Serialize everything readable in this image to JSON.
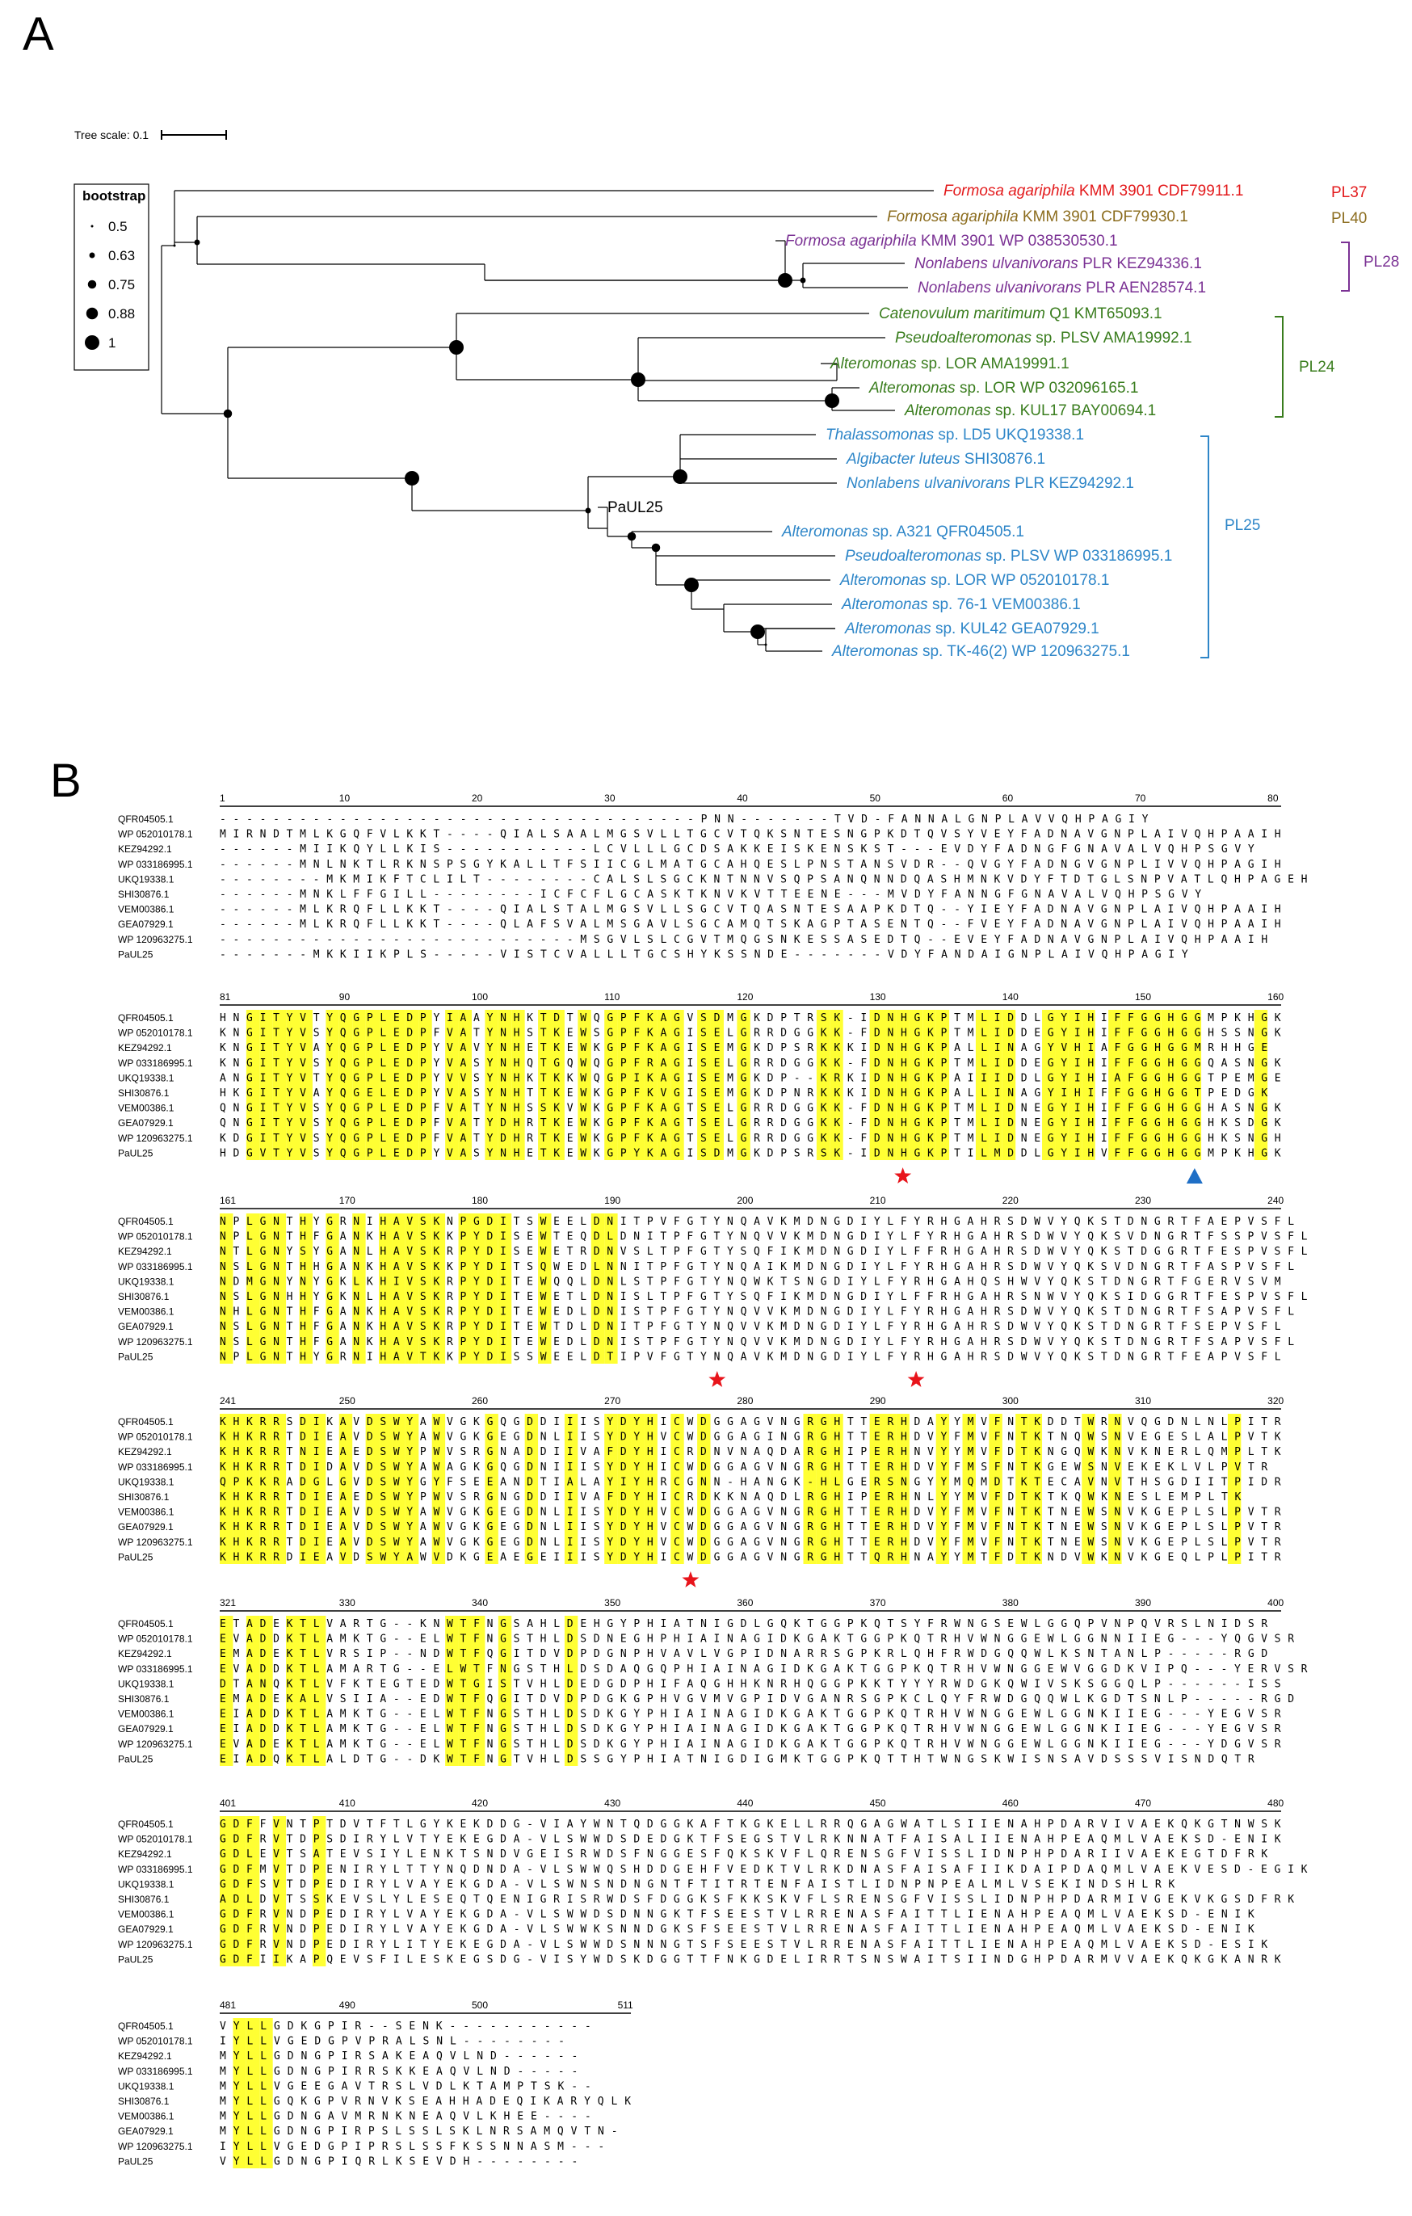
{
  "panels": {
    "a": "A",
    "b": "B"
  },
  "tree": {
    "scale_label": "Tree scale: 0.1",
    "legend_title": "bootstrap",
    "legend_items": [
      {
        "label": "0.5",
        "value": 0.5
      },
      {
        "label": "0.63",
        "value": 0.63
      },
      {
        "label": "0.75",
        "value": 0.75
      },
      {
        "label": "0.88",
        "value": 0.88
      },
      {
        "label": "1",
        "value": 1
      }
    ],
    "leaves": [
      {
        "species": "Formosa agariphila",
        "rest": " KMM 3901 CDF79911.1",
        "color": "#e31a1c"
      },
      {
        "species": "Formosa agariphila",
        "rest": " KMM 3901 CDF79930.1",
        "color": "#8c6d1f"
      },
      {
        "species": "Formosa agariphila",
        "rest": " KMM 3901 WP 038530530.1",
        "color": "#7b3294"
      },
      {
        "species": "Nonlabens ulvanivorans",
        "rest": " PLR KEZ94336.1",
        "color": "#7b3294"
      },
      {
        "species": "Nonlabens ulvanivorans",
        "rest": " PLR AEN28574.1",
        "color": "#7b3294"
      },
      {
        "species": "Catenovulum maritimum",
        "rest": " Q1 KMT65093.1",
        "color": "#3a7d1e"
      },
      {
        "species": "Pseudoalteromonas",
        "rest": " sp. PLSV AMA19992.1",
        "color": "#3a7d1e"
      },
      {
        "species": "Alteromonas",
        "rest": " sp. LOR AMA19991.1",
        "color": "#3a7d1e"
      },
      {
        "species": "Alteromonas",
        "rest": " sp. LOR WP 032096165.1",
        "color": "#3a7d1e"
      },
      {
        "species": "Alteromonas",
        "rest": " sp. KUL17 BAY00694.1",
        "color": "#3a7d1e"
      },
      {
        "species": "Thalassomonas",
        "rest": " sp. LD5 UKQ19338.1",
        "color": "#2e86c8"
      },
      {
        "species": "Algibacter luteus",
        "rest": " SHI30876.1",
        "color": "#2e86c8"
      },
      {
        "species": "Nonlabens ulvanivorans",
        "rest": " PLR KEZ94292.1",
        "color": "#2e86c8"
      },
      {
        "species": "",
        "rest": "PaUL25",
        "color": "#000000"
      },
      {
        "species": "Alteromonas",
        "rest": " sp. A321 QFR04505.1",
        "color": "#2e86c8"
      },
      {
        "species": "Pseudoalteromonas",
        "rest": " sp. PLSV WP 033186995.1",
        "color": "#2e86c8"
      },
      {
        "species": "Alteromonas",
        "rest": " sp. LOR WP 052010178.1",
        "color": "#2e86c8"
      },
      {
        "species": "Alteromonas",
        "rest": " sp. 76-1 VEM00386.1",
        "color": "#2e86c8"
      },
      {
        "species": "Alteromonas",
        "rest": " sp. KUL42 GEA07929.1",
        "color": "#2e86c8"
      },
      {
        "species": "Alteromonas",
        "rest": " sp. TK-46(2) WP 120963275.1",
        "color": "#2e86c8"
      }
    ],
    "families": [
      {
        "label": "PL37",
        "color": "#e31a1c"
      },
      {
        "label": "PL40",
        "color": "#8c6d1f"
      },
      {
        "label": "PL28",
        "color": "#7b3294"
      },
      {
        "label": "PL24",
        "color": "#3a7d1e"
      },
      {
        "label": "PL25",
        "color": "#2e86c8"
      }
    ]
  },
  "alignment": {
    "names": [
      "QFR04505.1",
      "WP 052010178.1",
      "KEZ94292.1",
      "WP 033186995.1",
      "UKQ19338.1",
      "SHI30876.1",
      "VEM00386.1",
      "GEA07929.1",
      "WP 120963275.1",
      "PaUL25"
    ],
    "highlight_color": "#ffff33",
    "blocks": [
      {
        "ticks": [
          "1",
          "10",
          "20",
          "30",
          "40",
          "50",
          "60",
          "70",
          "80"
        ],
        "rows": [
          "------------------------------------PNN-------TVD-FANNALGNPLAVVQHPAGIY",
          "MIRNDTMLKGQFVLKKT----QIALSAALMGSVLLTGCVTQKSNTESNGPKDTQVSYVEYFADNAVGNPLAIVQHPAAIH",
          "------MIIKQYLLKIS-----------LCVLLLGCDSAKKEISKENSKST---EVDYFADNGFGNAVALVQHPSGVY",
          "------MNLNKTLRKNSPSGYKALLTFSIICGLMATGCAHQESLPNSTANSVDR--QVGYFADNGVGNPLIVVQHPAGIH",
          "--------MKMIKFTCLILT--------CALSLSGCKNTNNVSQPSANQNNDQASHMNKVDYFTDTGLSNPVATLQHPAGEH",
          "------MNKLFFGILL--------ICFCFLGCASKTKNVKVTTEENE---MVDYFANNGFGNAVALVQHPSGVY",
          "------MLKRQFLLKKT----QIALSTALMGSVLLSGCVTQASNTESAAPKDTQ--YIEYFADNAVGNPLAIVQHPAAIH",
          "------MLKRQFLLKKT----QLAFSVALMSGAVLSGCAMQTSKAGPTASENTQ--FVEYFADNAVGNPLAIVQHPAAIH",
          "---------------------------MSGVLSLCGVTMQGSNKESSASEDTQ--EVEYFADNAVGNPLAIVQHPAAIH",
          "-------MKKIIKPLS-----VISTCVALLLTGCSHYKSSNDE-------VDYFANDAIGNPLAIVQHPAGIY"
        ],
        "marks": []
      },
      {
        "ticks": [
          "81",
          "90",
          "100",
          "110",
          "120",
          "130",
          "140",
          "150",
          "160"
        ],
        "rows": [
          "HNGITYVTYQGPLEDPYIAAYNHKTDTWQGPFKAGVSDMGKDPTRSK-IDNHGKPTMLIDDLGYIHIFFGGHGGMPKHGK",
          "KNGITYVSYQGPLEDPFVATYNHSTKEWSGPFKAGISELGRRDGGKK-FDNHGKPTMLIDDEGYIHIFFGGHGGHSSNGK",
          "KNGITYVAYQGPLEDPYVAVYNHETKEWKGPFKAGISEMGKDPSRKKKIDNHGKPALLINAGYVHIAFGGHGGMRHHGE",
          "KNGITYVSYQGPLEDPYVASYNHQTGQWQGPFRAGISELGRRDGGKK-FDNHGKPTMLIDDEGYIHIFFGGHGGQASNGK",
          "ANGITYVTYQGPLEDPYVVSYNHKTKKWQGPIKAGISEMGKDP--KRKIDNHGKPAIIIDDLGYIHIAFGGHGGTPEMGE",
          "HKGITYVAYQGELEDPYVASYNHTTKEWKGPFKVGISEMGKDPNRKKKIDNHGKPALLINAGYIHIFFGGHGGTPEDGK",
          "QNGITYVSYQGPLEDPFVATYNHSSKVWKGPFKAGTSELGRRDGGKK-FDNHGKPTMLIDNEGYIHIFFGGHGGHASNGK",
          "QNGITYVSYQGPLEDPFVATYDHRTKEWKGPFKAGTSELGRRDGGKK-FDNHGKPTMLIDNEGYIHIFFGGHGGHKSDGK",
          "KDGITYVSYQGPLEDPFVATYDHRTKEWKGPFKAGTSELGRRDGGKK-FDNHGKPTMLIDNEGYIHIFFGGHGGHKSNGH",
          "HDGVTYVSYQGPLEDPYVASYNHETKEWKGPYKAGISDMGKDPSRSK-IDNHGKPTILMDDLGYIHVFFGGHGGMPKHGK"
        ],
        "marks": [
          {
            "col": 51,
            "type": "star"
          },
          {
            "col": 73,
            "type": "triangle"
          }
        ]
      },
      {
        "ticks": [
          "161",
          "170",
          "180",
          "190",
          "200",
          "210",
          "220",
          "230",
          "240"
        ],
        "rows": [
          "NPLGNTHYGRNIHAVSKNPGDITSWEELDNITPVFGTYNQAVKMDNGDIYLFYRHGAHRSDWVYQKSTDNGRTFAEPVSFL",
          "NPLGNTHFGANKHAVSKKPYDISEWTEQDLDNITPFGTYNQVVKMDNGDIYLFYRHGAHRSDWVYQKSVDNGRTFSSPVSFL",
          "NTLGNYSYGANLHAVSKRPYDISEWETRDNVSLTPFGTYSQFIKMDNGDIYLFFRHGAHRSDWVYQKSTDGGRTFESPVSFL",
          "NSLGNTHHGANKHAVSKKPYDITSQWEDLNNITPFGTYNQAIKMDNGDIYLFYRHGAHRSDWVYQKSVDNGRTFASPVSFL",
          "NDMGNYNYGKLKHIVSKRPYDITEWQQLDNLSTPFGTYNQWKTSNGDIYLFYRHGAHQSHWVYQKSTDNGRTFGERVSVM",
          "NSLGNHHYGKNLHAVSKRPYDITEWETLDNISLTPFGTYSQFIKMDNGDIYLFFRHGAHRSNWVYQKSIDGGRTFESPVSFL",
          "NHLGNTHFGANKHAVSKRPYDITEWEDLDNISTPFGTYNQVVKMDNGDIYLFYRHGAHRSDWVYQKSTDNGRTFSAPVSFL",
          "NSLGNTHFGANKHAVSKRPYDITEWTDLDNITPFGTYNQVVKMDNGDIYLFYRHGAHRSDWVYQKSTDNGRTFSEPVSFL",
          "NSLGNTHFGANKHAVSKRPYDITEWEDLDNISTPFGTYNQVVKMDNGDIYLFYRHGAHRSDWVYQKSTDNGRTFSAPVSFL",
          "NPLGNTHYGRNIHAVTKKPYDISSWEELDTIPVFGTYNQAVKMDNGDIYLFYRHGAHRSDWVYQKSTDNGRTFEAPVSFL"
        ],
        "marks": [
          {
            "col": 37,
            "type": "star"
          },
          {
            "col": 52,
            "type": "star"
          }
        ]
      },
      {
        "ticks": [
          "241",
          "250",
          "260",
          "270",
          "280",
          "290",
          "300",
          "310",
          "320"
        ],
        "rows": [
          "KHKRRSDIKAVDSWYAWVGKGQGDDIIISYDYHICWDGGAGVNGRGHTTERHDAYYMVFNTKDDTWRNVQGDNLNLPITR",
          "KHKRRTDIEAVDSWYAWVGKGEGDNLIISYDYHVCWDGGAGINGRGHTTERHDVYFMVFNTKTNQWSNVEGESLALPVTK",
          "KHKRRTNIEAEDSWYPWVSRGNADDIIVAFDYHICRDNVNAQDARGHIPERHNVYYMVFDTKNGQWKNVKNERLQMPLTK",
          "KHKRRTDIDAVDSWYAWAGKGQGDNIIISYDYHICWDGGAGVNGRGHTTERHDVYFMSFNTKGEWSNVEKEKLVLPVTR",
          "QPKKRADGLGVDSWYGYFSEEANDTIALAYIYHRCGNN-HANGK-HLGERSNGYYMQMDTKTECAVNVTHSGDIITPIDR",
          "KHKRRTDIEAEDSWYPWVSRGNGDDIIVAFDYHICRDKKNAQDLRGHIPERHNLYYMVFDTKTKQWKNESLEMPLTK",
          "KHKRRTDIEAVDSWYAWVGKGEGDNLIISYDYHVCWDGGAGVNGRGHTTERHDVYFMVFNTKTNEWSNVKGEPLSLPVTR",
          "KHKRRTDIEAVDSWYAWVGKGEGDNLIISYDYHVCWDGGAGVNGRGHTTERHDVYFMVFNTKTNEWSNVKGEPLSLPVTR",
          "KHKRRTDIEAVDSWYAWVGKGEGDNLIISYDYHVCWDGGAGVNGRGHTTERHDVYFMVFNTKTNEWSNVKGEPLSLPVTR",
          "KHKRRDIEAVDSWYAWVDKGEAEGEIIISYDYHICWDGGAGVNGRGHTTQRHNAYYMTFDTKNDVWKNVKGEQLPLPITR"
        ],
        "marks": [
          {
            "col": 35,
            "type": "star"
          }
        ]
      },
      {
        "ticks": [
          "321",
          "330",
          "340",
          "350",
          "360",
          "370",
          "380",
          "390",
          "400"
        ],
        "rows": [
          "ETADEKTLVARTG--KNWTFNGSAHLDEHGYPHIATNIGDLGQKTGGPKQTSYFRWNGSEWLGGQPVNPQVRSLNIDSR",
          "EVADDKTLAMKTG--ELWTFNGSTHLDSDNEGHPHIAINAGIDKGAKTGGPKQTRHVWNGGEWLGGNNIIEG---YQGVSR",
          "EMADEKTLVRSIP--NDWTFQGITDVDPDGNPHVAVLVGPIDNARRSGPKRLQHFRWDGQQWLKSNTANLP-----RGD",
          "EVADDKTLAMARTG--ELWTFNGSTHLDSDAQGQPHIAINAGIDKGAKTGGPKQTRHVWNGGEWVGGDKVIPQ---YERVSR",
          "DTANQKTLVFKTEGTEDWTGISTVHLDEDGDPHIFAQGHHKNRHQGGPKKTYYYRWDGKQWIVSKSGGQLP------ISS",
          "EMADEKALVSIIA--EDWTFQGITDVDPDGKGPHVGVMVGPIDVGANRSGPKCLQYFRWDGQQWLKGDTSNLP-----RGD",
          "EIADDKTLAMKTG--ELWTFNGSTHLDSDKGYPHIAINAGIDKGAKTGGPKQTRHVWNGGEWLGGNKIIEG---YEGVSR",
          "EIADDKTLAMKTG--ELWTFNGSTHLDSDKGYPHIAINAGIDKGAKTGGPKQTRHVWNGGEWLGGNKIIEG---YEGVSR",
          "EVADEKTLAMKTG--ELWTFNGSTHLDSDKGYPHIAINAGIDKGAKTGGPKQTRHVWNGGEWLGGNKIIEG---YDGVSR",
          "EIADQKTLALDTG--DKWTFNGTVHLDSSGYPHIATNIGDIGMKTGGPKQTTHTWNGSKWISNSAVDSSSVISNDQTR"
        ],
        "marks": []
      },
      {
        "ticks": [
          "401",
          "410",
          "420",
          "430",
          "440",
          "450",
          "460",
          "470",
          "480"
        ],
        "rows": [
          "GDFFVNTPTDVTFTLGYKEKDDG-VIAYWNTQDGGKAFTKGKELLRRQGAGWATLSIIENAHPDARVIVAEKQKGTNWSK",
          "GDFRVTDPSDIRYLVTYEKEGDA-VLSWWDSDEDGKTFSEGSTVLRKNNATFAISALIIENAHPEAQMLVAEKSD-ENIK",
          "GDLEVTSATEVSIYLENKTSNDVGEISRWDSFNGGESFQKSKVFLQRENSGFVISSLIDNPHPDARIIVAEKEGTDFRK",
          "GDFMVTDPENIRYLTTYNQDNDA-VLSWWQSHDDGEHFVEDKTVLRKDNASFAISAFIIKDAIPDAQMLVAEKVESD-EGIK",
          "GDFSVTDPEDIRYLVAYEKGDA-VLSWNSNDNGNTFTITRTENFAISTLIDNPNPEALMLVSEKINDSHLRK",
          "ADLDVTSSKEVSLYLESEQTQENIGRISRWDSFDGGKSFKKSKVFLSRENSGFVISSLIDNPHPDARMIVGEKVKGSDFRK",
          "GDFRVNDPEDIRYLVAYEKGDA-VLSWWDSDNNGKTFSEESTVLRRENASFAITTLIENAHPEAQMLVAEKSD-ENIK",
          "GDFRVNDPEDIRYLVAYEKGDA-VLSWWKSNNDGKSFSEESTVLRRENASFAITTLIENAHPEAQMLVAEKSD-ENIK",
          "GDFRVNDPEDIRYLITYEKEGDA-VLSWWDSNNNGTSFSEESTVLRRENASFAITTLIENAHPEAQMLVAEKSD-ESIK",
          "GDFIIKAPQEVSFILESKEGSDG-VISYWDSKDGGTTFNKGDELIRRTSNSWAITSIINDGHPDARMVVAEKQKGKANRK"
        ],
        "marks": []
      },
      {
        "ticks": [
          "481",
          "490",
          "500",
          "511"
        ],
        "rows": [
          "VYLLGDKGPIR--SENK-----------",
          "IYLLVGEDGPVPRALSNL--------",
          "MYLLGDNGPIRSAKEAQVLND------",
          "MYLLGDNGPIRRSKKEAQVLND-----",
          "MYLLVGEEGAVTRSLVDLKTAMPTSK--",
          "MYLLGQKGPVRNVKSEAHHADEQIKARYQLK",
          "MYLLGDNGAVMRNKNEAQVLKHEE----",
          "MYLLGDNGPIRPSLSSLSKLNRSAMQVTN-",
          "IYLLVGEDGPIPRSLSSFKSSNNASM---",
          "VYLLGDNGPIQRLKSEVDH--------"
        ],
        "marks": []
      }
    ]
  }
}
